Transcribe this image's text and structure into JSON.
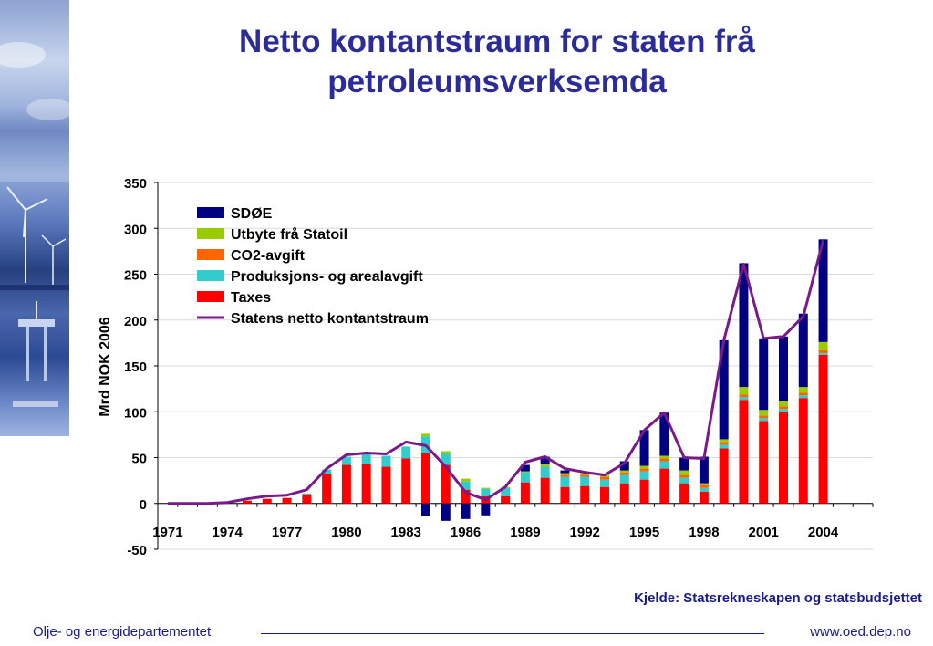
{
  "slide": {
    "title_line1": "Netto kontantstraum for staten frå",
    "title_line2": "petroleumsverksemda",
    "source": "Kjelde: Statsrekneskapen og statsbudsjettet",
    "footer_left": "Olje- og energidepartementet",
    "footer_right": "www.oed.dep.no"
  },
  "chart_data": {
    "type": "bar",
    "stacked": true,
    "ylabel": "Mrd NOK 2006",
    "xlabel": "",
    "ylim": [
      -50,
      350
    ],
    "yticks": [
      -50,
      0,
      50,
      100,
      150,
      200,
      250,
      300,
      350
    ],
    "grid": true,
    "legend_position": "top-left",
    "categories": [
      1971,
      1972,
      1973,
      1974,
      1975,
      1976,
      1977,
      1978,
      1979,
      1980,
      1981,
      1982,
      1983,
      1984,
      1985,
      1986,
      1987,
      1988,
      1989,
      1990,
      1991,
      1992,
      1993,
      1994,
      1995,
      1996,
      1997,
      1998,
      1999,
      2000,
      2001,
      2002,
      2003,
      2004,
      2005,
      2006
    ],
    "tick_labels": [
      "1971",
      "1974",
      "1977",
      "1980",
      "1983",
      "1986",
      "1989",
      "1992",
      "1995",
      "1998",
      "2001",
      "2004"
    ],
    "series": [
      {
        "name": "Taxes",
        "color": "#ff0000",
        "values": [
          0,
          0,
          0,
          0,
          3,
          5,
          6,
          10,
          32,
          42,
          43,
          40,
          49,
          55,
          42,
          15,
          8,
          8,
          23,
          28,
          18,
          19,
          18,
          22,
          26,
          38,
          22,
          13,
          60,
          113,
          90,
          100,
          115,
          162,
          0,
          0
        ]
      },
      {
        "name": "Produksjons- og arealavgift",
        "color": "#33cccc",
        "values": [
          0,
          0,
          0,
          0,
          0,
          0,
          0,
          1,
          5,
          9,
          11,
          12,
          13,
          18,
          12,
          9,
          8,
          9,
          11,
          12,
          11,
          10,
          8,
          9,
          9,
          8,
          6,
          4,
          4,
          3,
          3,
          3,
          3,
          2,
          0,
          0
        ]
      },
      {
        "name": "CO2-avgift",
        "color": "#ff6600",
        "values": [
          0,
          0,
          0,
          0,
          0,
          0,
          0,
          0,
          0,
          0,
          0,
          0,
          0,
          0,
          0,
          0,
          0,
          0,
          0,
          0,
          2,
          2,
          3,
          3,
          3,
          3,
          3,
          3,
          3,
          3,
          3,
          3,
          3,
          3,
          0,
          0
        ]
      },
      {
        "name": "Utbyte frå Statoil",
        "color": "#99cc00",
        "values": [
          0,
          0,
          0,
          0,
          0,
          0,
          0,
          0,
          0,
          0,
          0,
          0,
          0,
          3,
          3,
          3,
          1,
          1,
          1,
          3,
          2,
          2,
          3,
          2,
          3,
          3,
          5,
          2,
          3,
          8,
          6,
          6,
          6,
          9,
          0,
          0
        ]
      },
      {
        "name": "SDØE",
        "color": "#000080",
        "values": [
          0,
          0,
          0,
          0,
          0,
          0,
          0,
          0,
          0,
          0,
          0,
          0,
          0,
          -14,
          -19,
          -17,
          -13,
          0,
          7,
          8,
          3,
          0,
          0,
          10,
          39,
          47,
          14,
          29,
          108,
          135,
          78,
          70,
          80,
          112,
          0,
          0
        ]
      }
    ],
    "line": {
      "name": "Statens netto kontantstraum",
      "color": "#7a1a8a",
      "values": [
        0,
        0,
        0,
        1,
        5,
        8,
        9,
        15,
        38,
        53,
        55,
        54,
        67,
        63,
        40,
        12,
        4,
        18,
        45,
        51,
        38,
        34,
        31,
        44,
        80,
        99,
        50,
        49,
        178,
        261,
        180,
        182,
        204,
        287
      ]
    }
  }
}
